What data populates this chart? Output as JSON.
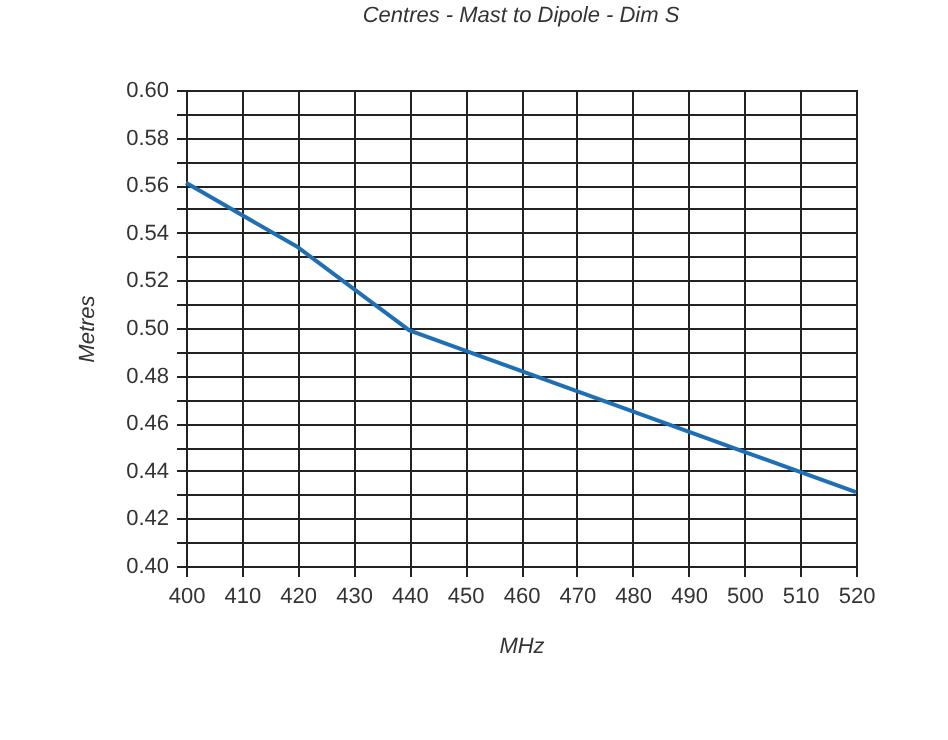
{
  "chart_data": {
    "type": "line",
    "title": "Centres - Mast to Dipole - Dim S",
    "xlabel": "MHz",
    "ylabel": "Metres",
    "x": [
      400,
      420,
      440,
      460,
      480,
      500,
      520
    ],
    "series": [
      {
        "color": "#1f6fb4",
        "values": [
          0.561,
          0.534,
          0.499,
          0.482,
          0.465,
          0.448,
          0.431
        ]
      }
    ],
    "xlim": [
      400,
      520
    ],
    "xticks": [
      400,
      410,
      420,
      430,
      440,
      450,
      460,
      470,
      480,
      490,
      500,
      510,
      520
    ],
    "ylim": [
      0.4,
      0.6
    ],
    "yticks": [
      {
        "value": 0.4,
        "label": "0.40"
      },
      {
        "value": 0.41,
        "label": null
      },
      {
        "value": 0.42,
        "label": "0.42"
      },
      {
        "value": 0.43,
        "label": null
      },
      {
        "value": 0.44,
        "label": "0.44"
      },
      {
        "value": 0.45,
        "label": null
      },
      {
        "value": 0.46,
        "label": "0.46"
      },
      {
        "value": 0.47,
        "label": null
      },
      {
        "value": 0.48,
        "label": "0.48"
      },
      {
        "value": 0.49,
        "label": null
      },
      {
        "value": 0.5,
        "label": "0.50"
      },
      {
        "value": 0.51,
        "label": null
      },
      {
        "value": 0.52,
        "label": "0.52"
      },
      {
        "value": 0.53,
        "label": null
      },
      {
        "value": 0.54,
        "label": "0.54"
      },
      {
        "value": 0.55,
        "label": null
      },
      {
        "value": 0.56,
        "label": "0.56"
      },
      {
        "value": 0.57,
        "label": null
      },
      {
        "value": 0.58,
        "label": "0.58"
      },
      {
        "value": 0.59,
        "label": null
      },
      {
        "value": 0.6,
        "label": "0.60"
      }
    ],
    "grid": true,
    "line_style": "solid",
    "marker": "none"
  }
}
